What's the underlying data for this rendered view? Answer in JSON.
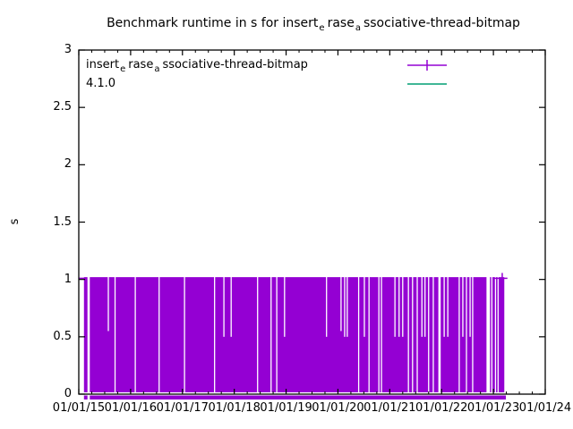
{
  "title": {
    "p1": "Benchmark runtime in s for insert",
    "sub1": "e",
    "p2": "rase",
    "sub2": "a",
    "p3": "ssociative-thread-bitmap"
  },
  "y_axis": {
    "label": "s",
    "tick_values": [
      0,
      0.5,
      1,
      1.5,
      2,
      2.5,
      3
    ],
    "tick_labels": [
      "0",
      "0.5",
      "1",
      "1.5",
      "2",
      "2.5",
      "3"
    ]
  },
  "x_axis": {
    "tick_labels": [
      "01/01/15",
      "01/01/16",
      "01/01/17",
      "01/01/18",
      "01/01/19",
      "01/01/20",
      "01/01/21",
      "01/01/22",
      "01/01/23",
      "01/01/24"
    ]
  },
  "legend": {
    "entries": [
      {
        "l1": "insert",
        "s1": "e",
        "l2": "rase",
        "s2": "a",
        "l3": "ssociative-thread-bitmap",
        "color": "#9400d3",
        "marker": "plus"
      },
      {
        "label": "4.1.0",
        "color": "#009e73",
        "marker": "none"
      }
    ]
  },
  "colors": {
    "series1": "#9400d3",
    "series2": "#009e73",
    "axis": "#000000",
    "background": "#ffffff"
  },
  "chart_data": {
    "type": "line",
    "title": "Benchmark runtime in s for insert_erase_associative-thread-bitmap",
    "xlabel": "",
    "ylabel": "s",
    "ylim": [
      0,
      3
    ],
    "y_ticks": [
      0,
      0.5,
      1,
      1.5,
      2,
      2.5,
      3
    ],
    "x_range_years": [
      2015,
      2024
    ],
    "x_tick_labels": [
      "01/01/15",
      "01/01/16",
      "01/01/17",
      "01/01/18",
      "01/01/19",
      "01/01/20",
      "01/01/21",
      "01/01/22",
      "01/01/23",
      "01/01/24"
    ],
    "grid": false,
    "legend_position": "top-left-inside",
    "series": [
      {
        "name": "insert_erase_associative-thread-bitmap",
        "color": "#9400d3",
        "style": "errorlines",
        "summary": "runtime oscillates densely between ~0.01 s and ~1.02 s, rendering as a solid block",
        "block": {
          "x_start": 2015.1,
          "x_end": 2023.21,
          "y_top": 1.02,
          "y_bottom": 0.02
        },
        "start_cap": {
          "x1": 2015.0,
          "x2": 2015.16,
          "y": 1.01
        },
        "end_cap": {
          "x1": 2022.98,
          "x2": 2023.27,
          "y": 1.01,
          "marker_x": 2023.17
        },
        "underband": {
          "x_start": 2015.1,
          "x_end": 2023.24
        },
        "gaps": [
          {
            "x": 2015.19,
            "to": 0,
            "w": 2,
            "cut_band": true
          },
          {
            "x": 2015.57,
            "to": 0.55,
            "w": 1
          },
          {
            "x": 2015.7,
            "to": 0,
            "w": 1
          },
          {
            "x": 2016.09,
            "to": 0,
            "w": 1
          },
          {
            "x": 2016.55,
            "to": 0,
            "w": 1
          },
          {
            "x": 2017.04,
            "to": 0,
            "w": 1
          },
          {
            "x": 2017.62,
            "to": 0,
            "w": 1
          },
          {
            "x": 2017.8,
            "to": 0.5,
            "w": 1
          },
          {
            "x": 2017.94,
            "to": 0.5,
            "w": 1
          },
          {
            "x": 2018.45,
            "to": 0,
            "w": 1
          },
          {
            "x": 2018.71,
            "to": 0,
            "w": 1
          },
          {
            "x": 2018.82,
            "to": 0,
            "w": 1
          },
          {
            "x": 2018.97,
            "to": 0.5,
            "w": 1
          },
          {
            "x": 2019.78,
            "to": 0.5,
            "w": 1
          },
          {
            "x": 2020.06,
            "to": 0.55,
            "w": 1
          },
          {
            "x": 2020.13,
            "to": 0.5,
            "w": 1
          },
          {
            "x": 2020.18,
            "to": 0.5,
            "w": 1
          },
          {
            "x": 2020.4,
            "to": 0,
            "w": 1
          },
          {
            "x": 2020.51,
            "to": 0.5,
            "w": 1
          },
          {
            "x": 2020.6,
            "to": 0,
            "w": 1
          },
          {
            "x": 2020.79,
            "to": 0,
            "w": 1
          },
          {
            "x": 2020.84,
            "to": 0,
            "w": 1
          },
          {
            "x": 2021.1,
            "to": 0.5,
            "w": 1
          },
          {
            "x": 2021.18,
            "to": 0.5,
            "w": 1
          },
          {
            "x": 2021.25,
            "to": 0.5,
            "w": 1
          },
          {
            "x": 2021.36,
            "to": 0,
            "w": 1
          },
          {
            "x": 2021.44,
            "to": 0,
            "w": 1
          },
          {
            "x": 2021.53,
            "to": 0,
            "w": 1
          },
          {
            "x": 2021.62,
            "to": 0.5,
            "w": 1
          },
          {
            "x": 2021.68,
            "to": 0.5,
            "w": 1
          },
          {
            "x": 2021.75,
            "to": 0,
            "w": 1
          },
          {
            "x": 2021.84,
            "to": 0,
            "w": 1
          },
          {
            "x": 2021.96,
            "to": 0,
            "w": 2
          },
          {
            "x": 2022.05,
            "to": 0.5,
            "w": 1
          },
          {
            "x": 2022.12,
            "to": 0.5,
            "w": 1
          },
          {
            "x": 2022.34,
            "to": 0,
            "w": 1
          },
          {
            "x": 2022.41,
            "to": 0.5,
            "w": 1
          },
          {
            "x": 2022.48,
            "to": 0,
            "w": 1
          },
          {
            "x": 2022.55,
            "to": 0.5,
            "w": 1
          },
          {
            "x": 2022.6,
            "to": 0,
            "w": 1
          },
          {
            "x": 2022.9,
            "to": 0,
            "w": 3
          },
          {
            "x": 2022.97,
            "to": 0,
            "w": 1
          },
          {
            "x": 2023.04,
            "to": 0,
            "w": 1
          },
          {
            "x": 2023.09,
            "to": 0,
            "w": 1
          }
        ]
      },
      {
        "name": "4.1.0",
        "color": "#009e73",
        "style": "line",
        "summary": "no visible data points in plotted range"
      }
    ]
  }
}
